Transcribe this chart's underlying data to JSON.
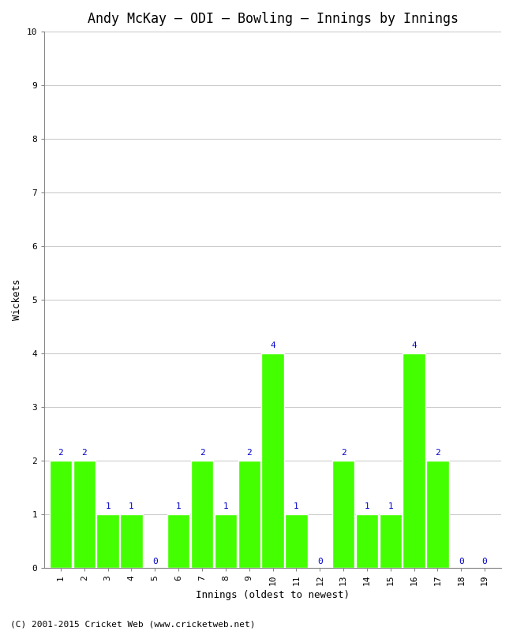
{
  "title": "Andy McKay – ODI – Bowling – Innings by Innings",
  "xlabel": "Innings (oldest to newest)",
  "ylabel": "Wickets",
  "innings": [
    1,
    2,
    3,
    4,
    5,
    6,
    7,
    8,
    9,
    10,
    11,
    12,
    13,
    14,
    15,
    16,
    17,
    18,
    19
  ],
  "wickets": [
    2,
    2,
    1,
    1,
    0,
    1,
    2,
    1,
    2,
    4,
    1,
    0,
    2,
    1,
    1,
    4,
    2,
    0,
    0
  ],
  "bar_color": "#44ff00",
  "label_color": "#0000cc",
  "ylim": [
    0,
    10
  ],
  "yticks": [
    0,
    1,
    2,
    3,
    4,
    5,
    6,
    7,
    8,
    9,
    10
  ],
  "background_color": "#ffffff",
  "grid_color": "#cccccc",
  "footer": "(C) 2001-2015 Cricket Web (www.cricketweb.net)",
  "title_fontsize": 12,
  "label_fontsize": 9,
  "tick_fontsize": 8,
  "footer_fontsize": 8
}
